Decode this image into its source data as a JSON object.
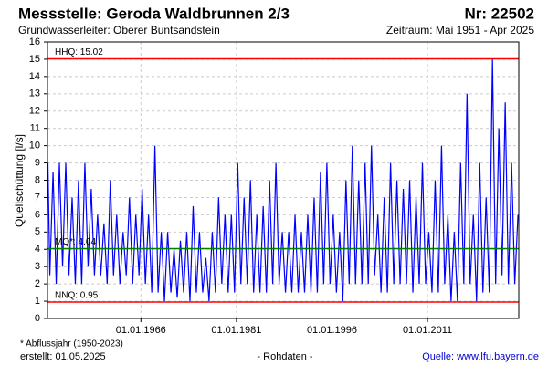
{
  "chart_data": {
    "type": "line",
    "title": "Messstelle: Geroda Waldbrunnen 2/3",
    "station_number": "Nr: 22502",
    "subtitle": "Grundwasserleiter:   Oberer Buntsandstein",
    "period": "Zeitraum: Mai 1951 - Apr 2025",
    "ylabel": "Quellschüttung [l/s]",
    "footnote": "* Abflussjahr (1950-2023)",
    "created": "erstellt:  01.05.2025",
    "data_kind": "- Rohdaten -",
    "source": "Quelle: www.lfu.bayern.de",
    "color": "#0000ff",
    "grid": true,
    "xlim": [
      1951.33,
      2025.33
    ],
    "xticks": [
      {
        "value": 1966,
        "label": "01.01.1966"
      },
      {
        "value": 1981,
        "label": "01.01.1981"
      },
      {
        "value": 1996,
        "label": "01.01.1996"
      },
      {
        "value": 2011,
        "label": "01.01.2011"
      }
    ],
    "ylim": [
      0,
      16
    ],
    "yticks": [
      0,
      1,
      2,
      3,
      4,
      5,
      6,
      7,
      8,
      9,
      10,
      11,
      12,
      13,
      14,
      15,
      16
    ],
    "ref_lines": [
      {
        "label": "HHQ: 15.02",
        "value": 15.02,
        "color": "#ff0000"
      },
      {
        "label": "MQ*: 4.04",
        "value": 4.04,
        "color": "#008000"
      },
      {
        "label": "NNQ: 0.95",
        "value": 0.95,
        "color": "#ff0000"
      }
    ],
    "x": [
      1951.4,
      1951.7,
      1952.2,
      1952.7,
      1953.2,
      1953.7,
      1954.2,
      1954.7,
      1955.2,
      1955.7,
      1956.2,
      1956.7,
      1957.2,
      1957.7,
      1958.2,
      1958.7,
      1959.2,
      1959.7,
      1960.2,
      1960.7,
      1961.2,
      1961.7,
      1962.2,
      1962.7,
      1963.2,
      1963.7,
      1964.2,
      1964.7,
      1965.2,
      1965.7,
      1966.2,
      1966.7,
      1967.2,
      1967.7,
      1968.2,
      1968.7,
      1969.2,
      1969.7,
      1970.2,
      1970.7,
      1971.2,
      1971.7,
      1972.2,
      1972.7,
      1973.2,
      1973.7,
      1974.2,
      1974.7,
      1975.2,
      1975.7,
      1976.2,
      1976.7,
      1977.2,
      1977.7,
      1978.2,
      1978.7,
      1979.2,
      1979.7,
      1980.2,
      1980.7,
      1981.2,
      1981.7,
      1982.2,
      1982.7,
      1983.2,
      1983.7,
      1984.2,
      1984.7,
      1985.2,
      1985.7,
      1986.2,
      1986.7,
      1987.2,
      1987.7,
      1988.2,
      1988.7,
      1989.2,
      1989.7,
      1990.2,
      1990.7,
      1991.2,
      1991.7,
      1992.2,
      1992.7,
      1993.2,
      1993.7,
      1994.2,
      1994.7,
      1995.2,
      1995.7,
      1996.2,
      1996.7,
      1997.2,
      1997.7,
      1998.2,
      1998.7,
      1999.2,
      1999.7,
      2000.2,
      2000.7,
      2001.2,
      2001.7,
      2002.2,
      2002.7,
      2003.2,
      2003.7,
      2004.2,
      2004.7,
      2005.2,
      2005.7,
      2006.2,
      2006.7,
      2007.2,
      2007.7,
      2008.2,
      2008.7,
      2009.2,
      2009.7,
      2010.2,
      2010.7,
      2011.2,
      2011.7,
      2012.2,
      2012.7,
      2013.2,
      2013.7,
      2014.2,
      2014.7,
      2015.2,
      2015.7,
      2016.2,
      2016.7,
      2017.2,
      2017.7,
      2018.2,
      2018.7,
      2019.2,
      2019.7,
      2020.2,
      2020.7,
      2021.2,
      2021.7,
      2022.2,
      2022.7,
      2023.2,
      2023.7,
      2024.2,
      2024.7,
      2025.2
    ],
    "values": [
      9,
      2.5,
      8.5,
      2,
      9,
      3,
      9,
      2.5,
      7,
      2,
      8,
      2,
      9,
      3,
      7.5,
      2.5,
      6,
      2.5,
      5.5,
      2,
      8,
      2.5,
      6,
      2,
      5,
      2.5,
      7,
      2,
      6,
      2.5,
      7.5,
      2,
      6,
      1.5,
      10,
      1.5,
      5,
      1,
      5,
      1.5,
      4,
      1.2,
      4.5,
      1.5,
      5,
      1,
      6.5,
      1.5,
      5,
      1.5,
      3.5,
      1,
      5,
      1.5,
      7,
      2,
      6,
      1.5,
      6,
      1.5,
      9,
      2,
      7,
      2,
      8,
      1.5,
      6,
      1.5,
      6.5,
      1.5,
      8,
      2,
      9,
      2,
      5,
      1.5,
      5,
      1.5,
      6,
      1.5,
      5,
      1.5,
      6,
      1.5,
      7,
      1.5,
      8.5,
      2,
      9,
      2,
      6,
      1.5,
      5,
      1,
      8,
      2,
      10,
      2,
      8,
      2,
      9,
      2,
      10,
      2.5,
      6,
      1.5,
      7,
      1.5,
      9,
      2,
      8,
      2,
      7.5,
      2,
      8,
      1.5,
      7,
      2,
      9,
      2,
      5,
      1.5,
      8,
      1.5,
      10,
      2,
      6,
      1,
      5,
      1,
      9,
      2,
      13,
      2,
      6,
      1,
      9,
      1.5,
      7,
      1.5,
      15,
      2,
      11,
      2.5,
      12.5,
      2,
      9,
      2,
      6
    ]
  }
}
